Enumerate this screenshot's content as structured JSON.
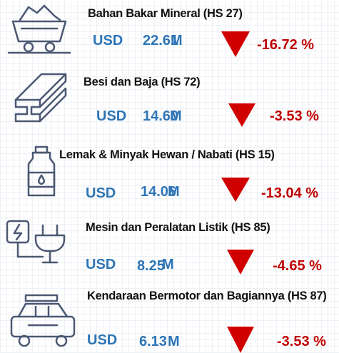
{
  "items": [
    {
      "title": "Bahan Bakar Mineral (HS 27)",
      "currency": "USD",
      "value": "22.61",
      "unit": "M",
      "change": "-16.72 %"
    },
    {
      "title": "Besi dan Baja (HS 72)",
      "currency": "USD",
      "value": "14.60",
      "unit": "M",
      "change": "-3.53 %"
    },
    {
      "title": "Lemak & Minyak Hewan / Nabati (HS 15)",
      "currency": "USD",
      "value": "14.06",
      "unit": "M",
      "change": "-13.04 %"
    },
    {
      "title": "Mesin dan Peralatan Listik (HS 85)",
      "currency": "USD",
      "value": "8.25",
      "unit": "M",
      "change": "-4.65 %"
    },
    {
      "title": "Kendaraan Bermotor dan Bagiannya (HS 87)",
      "currency": "USD",
      "value": "6.13",
      "unit": "M",
      "change": "-3.53 %"
    }
  ]
}
